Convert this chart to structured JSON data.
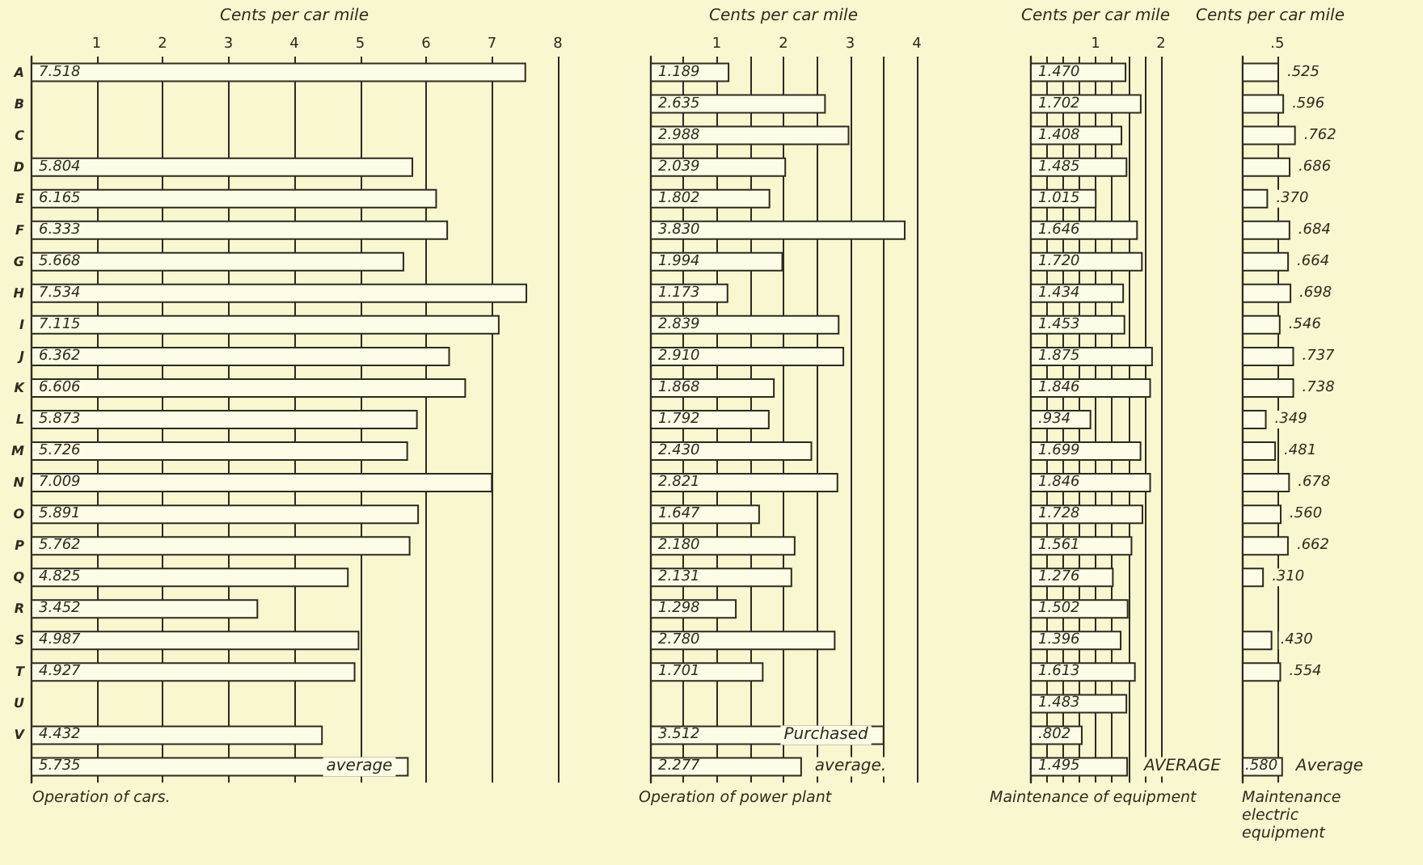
{
  "chart_data": [
    {
      "type": "bar",
      "orientation": "horizontal",
      "title": "Operation of cars.",
      "xlabel": "Cents per car mile",
      "grid": "x",
      "color": "#fdfce6",
      "categories": [
        "A",
        "B",
        "C",
        "D",
        "E",
        "F",
        "G",
        "H",
        "I",
        "J",
        "K",
        "L",
        "M",
        "N",
        "O",
        "P",
        "Q",
        "R",
        "S",
        "T",
        "U",
        "V",
        null
      ],
      "values": [
        7.518,
        null,
        null,
        5.804,
        6.165,
        6.333,
        5.668,
        7.534,
        7.115,
        6.362,
        6.606,
        5.873,
        5.726,
        7.009,
        5.891,
        5.762,
        4.825,
        3.452,
        4.987,
        4.927,
        null,
        4.432,
        5.735
      ],
      "value_labels": [
        "7.518",
        null,
        null,
        "5.804",
        "6.165",
        "6.333",
        "5.668",
        "7.534",
        "7.115",
        "6.362",
        "6.606",
        "5.873",
        "5.726",
        "7.009",
        "5.891",
        "5.762",
        "4.825",
        "3.452",
        "4.987",
        "4.927",
        null,
        "4.432",
        "5.735"
      ],
      "xlim": [
        0,
        8
      ],
      "xticks": [
        1,
        2,
        3,
        4,
        5,
        6,
        7,
        8
      ],
      "annotations": [
        {
          "text": "average",
          "x": 5.735
        }
      ]
    },
    {
      "type": "bar",
      "orientation": "horizontal",
      "title": "Operation of power plant",
      "xlabel": "Cents per car mile",
      "grid": "x",
      "color": "#fdfce6",
      "tick_labels": "x",
      "categories": [
        "A",
        "B",
        "C",
        "D",
        "E",
        "F",
        "G",
        "H",
        "I",
        "J",
        "K",
        "L",
        "M",
        "N",
        "O",
        "P",
        "Q",
        "R",
        "S",
        "T",
        "U",
        "V",
        null
      ],
      "values": [
        1.189,
        2.635,
        2.988,
        2.039,
        1.802,
        3.83,
        1.994,
        1.173,
        2.839,
        2.91,
        1.868,
        1.792,
        2.43,
        2.821,
        1.647,
        2.18,
        2.131,
        1.298,
        2.78,
        1.701,
        null,
        3.512,
        2.277
      ],
      "value_labels": [
        "1.189",
        "2.635",
        "2.988",
        "2.039",
        "1.802",
        "3.830",
        "1.994",
        "1.173",
        "2.839",
        "2.910",
        "1.868",
        "1.792",
        "2.430",
        "2.821",
        "1.647",
        "2.180",
        "2.131",
        "1.298",
        "2.780",
        "1.701",
        null,
        "3.512",
        "2.277"
      ],
      "xlim": [
        0,
        4
      ],
      "xticks": [
        {
          "value": 0.5,
          "label": null
        },
        1,
        {
          "value": 1.5,
          "label": null
        },
        2,
        {
          "value": 2.5,
          "label": null
        },
        3,
        {
          "value": 3.5,
          "label": null
        },
        4
      ],
      "annotations": [
        {
          "text": "Purchased",
          "x": 3.512,
          "y": "V"
        },
        {
          "text": "average.",
          "x": 2.277
        }
      ]
    },
    {
      "type": "bar",
      "orientation": "horizontal",
      "title": "Maintenance of equipment",
      "xlabel": "Cents per car mile",
      "grid": "x",
      "color": "#fdfce6",
      "tick_labels": "x",
      "categories": [
        "A",
        "B",
        "C",
        "D",
        "E",
        "F",
        "G",
        "H",
        "I",
        "J",
        "K",
        "L",
        "M",
        "N",
        "O",
        "P",
        "Q",
        "R",
        "S",
        "T",
        "U",
        "V",
        null
      ],
      "values": [
        1.47,
        1.702,
        1.408,
        1.485,
        1.015,
        1.646,
        1.72,
        1.434,
        1.453,
        1.875,
        1.846,
        0.934,
        1.699,
        1.846,
        1.728,
        1.561,
        1.276,
        1.502,
        1.396,
        1.613,
        1.483,
        0.802,
        1.495
      ],
      "value_labels": [
        "1.470",
        "1.702",
        "1.408",
        "1.485",
        "1.015",
        "1.646",
        "1.720",
        "1.434",
        "1.453",
        "1.875",
        "1.846",
        ".934",
        "1.699",
        "1.846",
        "1.728",
        "1.561",
        "1.276",
        "1.502",
        "1.396",
        "1.613",
        "1.483",
        ".802",
        "1.495"
      ],
      "xlim": [
        0,
        2
      ],
      "xticks": [
        {
          "value": 0.25,
          "label": null
        },
        {
          "value": 0.5,
          "label": null
        },
        {
          "value": 0.75,
          "label": null
        },
        1,
        {
          "value": 1.25,
          "label": null
        },
        {
          "value": 1.5,
          "label": null
        },
        {
          "value": 1.75,
          "label": null
        },
        2
      ],
      "annotations": [
        {
          "text": "AVERAGE",
          "x": 1.495
        }
      ]
    },
    {
      "type": "bar",
      "orientation": "horizontal",
      "title": "Maintenance electric equipment",
      "xlabel": "Cents per car mile",
      "grid": "x",
      "color": "#fdfce6",
      "tick_labels": "x",
      "categories": [
        "A",
        "B",
        "C",
        "D",
        "E",
        "F",
        "G",
        "H",
        "I",
        "J",
        "K",
        "L",
        "M",
        "N",
        "O",
        "P",
        "Q",
        "R",
        "S",
        "T",
        "U",
        "V",
        null
      ],
      "values": [
        0.525,
        0.596,
        0.762,
        0.686,
        0.37,
        0.684,
        0.664,
        0.698,
        0.546,
        0.737,
        0.738,
        0.349,
        0.481,
        0.678,
        0.56,
        0.662,
        0.31,
        null,
        0.43,
        0.554,
        null,
        null,
        0.58
      ],
      "value_labels": [
        ".525",
        ".596",
        ".762",
        ".686",
        ".370",
        ".684",
        ".664",
        ".698",
        ".546",
        ".737",
        ".738",
        ".349",
        ".481",
        ".678",
        ".560",
        ".662",
        ".310",
        null,
        ".430",
        ".554",
        null,
        null,
        ".580"
      ],
      "xlim": [
        0,
        0.8
      ],
      "xticks": [
        {
          "value": 0.5,
          "label": ".5"
        }
      ],
      "annotations": [
        {
          "text": "Average",
          "x": 0.58
        }
      ]
    }
  ]
}
